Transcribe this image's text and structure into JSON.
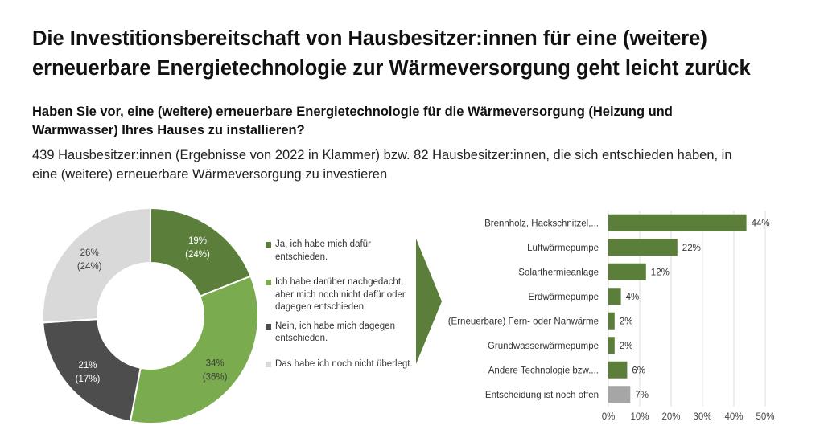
{
  "header": {
    "title": "Die Investitionsbereitschaft von Hausbesitzer:innen für eine (weitere) erneuerbare Energietechnologie zur Wärmeversorgung geht leicht zurück",
    "question": "Haben Sie vor, eine (weitere) erneuerbare Energietechnologie für die Wärmeversorgung (Heizung und Warmwasser) Ihres Hauses zu installieren?",
    "subtitle": "439 Hausbesitzer:innen (Ergebnisse von 2022 in Klammer) bzw. 82 Hausbesitzer:innen, die sich entschieden haben, in eine (weitere) erneuerbare Wärmeversorgung zu investieren"
  },
  "legend": [
    {
      "label": "Ja, ich habe mich dafür entschieden.",
      "color": "#5b7f3a"
    },
    {
      "label": "Ich habe darüber nachgedacht, aber mich noch nicht dafür oder dagegen entschieden.",
      "color": "#7aab4f"
    },
    {
      "label": "Nein, ich habe mich dagegen entschieden.",
      "color": "#4d4d4d"
    },
    {
      "label": "Das habe ich noch nicht überlegt.",
      "color": "#d9d9d9"
    }
  ],
  "chart_data": [
    {
      "type": "pie",
      "donut": true,
      "slices": [
        {
          "label": "Ja, ich habe mich dafür entschieden.",
          "value": 19,
          "label_text": "19%",
          "prev_text": "(24%)",
          "color": "#5b7f3a",
          "text_color": "#ffffff"
        },
        {
          "label": "Ich habe darüber nachgedacht, aber mich noch nicht dafür oder dagegen entschieden.",
          "value": 34,
          "label_text": "34%",
          "prev_text": "(36%)",
          "color": "#7aab4f",
          "text_color": "#3d3d3d"
        },
        {
          "label": "Nein, ich habe mich dagegen entschieden.",
          "value": 21,
          "label_text": "21%",
          "prev_text": "(17%)",
          "color": "#4d4d4d",
          "text_color": "#ffffff"
        },
        {
          "label": "Das habe ich noch nicht überlegt.",
          "value": 26,
          "label_text": "26%",
          "prev_text": "(24%)",
          "color": "#d9d9d9",
          "text_color": "#3d3d3d"
        }
      ]
    },
    {
      "type": "bar",
      "orientation": "horizontal",
      "categories": [
        "Brennholz, Hackschnitzel,...",
        "Luftwärmepumpe",
        "Solarthermieanlage",
        "Erdwärmepumpe",
        "(Erneuerbare) Fern- oder Nahwärme",
        "Grundwasserwärmepumpe",
        "Andere Technologie bzw....",
        "Entscheidung ist noch offen"
      ],
      "values": [
        44,
        22,
        12,
        4,
        2,
        2,
        6,
        7
      ],
      "value_labels": [
        "44%",
        "22%",
        "12%",
        "4%",
        "2%",
        "2%",
        "6%",
        "7%"
      ],
      "colors": [
        "#5b7f3a",
        "#5b7f3a",
        "#5b7f3a",
        "#5b7f3a",
        "#5b7f3a",
        "#5b7f3a",
        "#5b7f3a",
        "#a6a6a6"
      ],
      "xlim": [
        0,
        50
      ],
      "xticks": [
        0,
        10,
        20,
        30,
        40,
        50
      ],
      "xtick_labels": [
        "0%",
        "10%",
        "20%",
        "30%",
        "40%",
        "50%"
      ],
      "grid": true
    }
  ]
}
